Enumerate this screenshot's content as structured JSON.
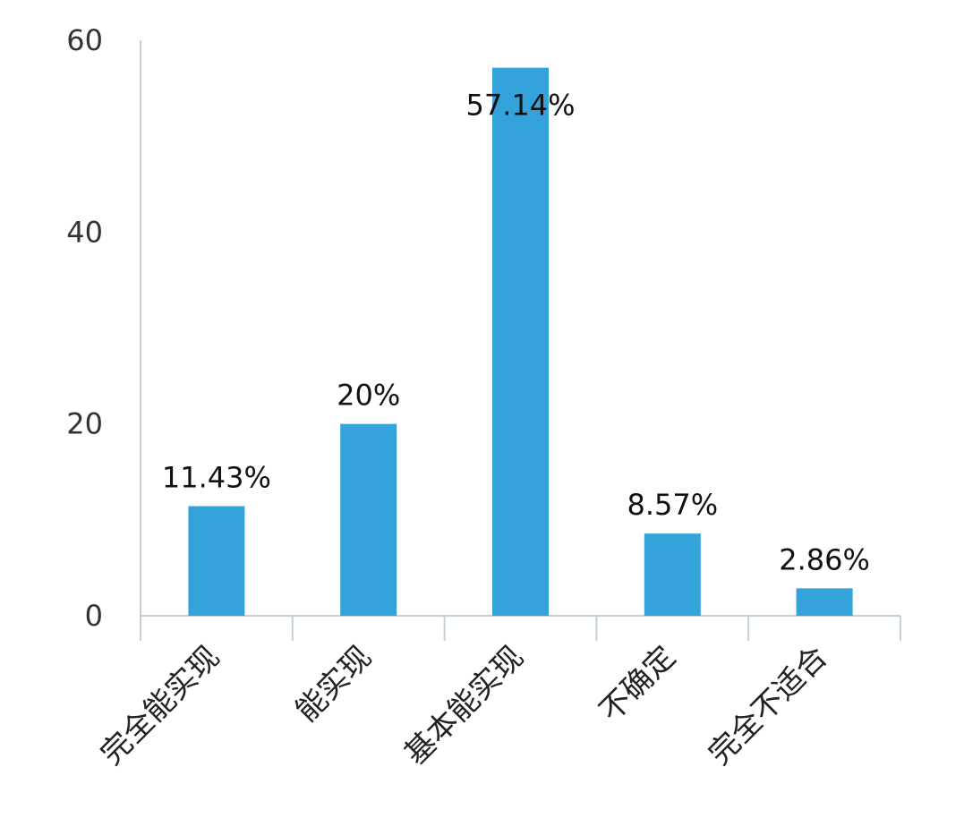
{
  "chart_data": {
    "type": "bar",
    "categories": [
      "完全能实现",
      "能实现",
      "基本能实现",
      "不确定",
      "完全不适合"
    ],
    "values": [
      11.43,
      20,
      57.14,
      8.57,
      2.86
    ],
    "data_labels": [
      "11.43%",
      "20%",
      "57.14%",
      "8.57%",
      "2.86%"
    ],
    "ylim": [
      0,
      60
    ],
    "yticks": [
      0,
      20,
      40,
      60
    ],
    "ytick_labels": [
      "0",
      "20",
      "40",
      "60"
    ],
    "grid": false,
    "bar_color": "#35a3db",
    "axis_color": "#c5cfda"
  }
}
